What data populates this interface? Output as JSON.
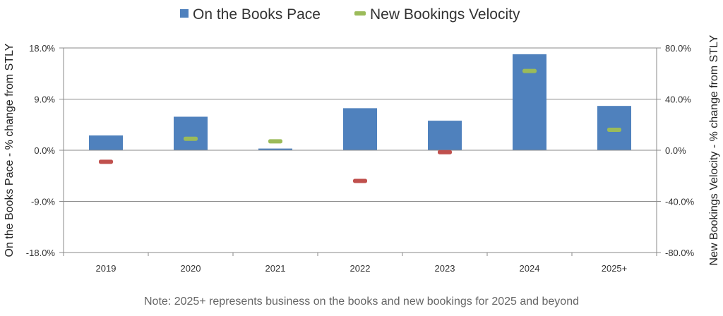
{
  "chart_data": {
    "type": "bar",
    "categories": [
      "2019",
      "2020",
      "2021",
      "2022",
      "2023",
      "2024",
      "2025+"
    ],
    "series": [
      {
        "name": "On the Books Pace",
        "kind": "bar",
        "axis": "left",
        "color": "#4F81BD",
        "values": [
          2.6,
          5.9,
          0.3,
          7.4,
          5.2,
          16.9,
          7.8
        ]
      },
      {
        "name": "New Bookings Velocity",
        "kind": "marker",
        "axis": "right",
        "positive_color": "#9BBB59",
        "negative_color": "#C0504D",
        "values": [
          -9.0,
          9.0,
          7.0,
          -24.0,
          -1.5,
          62.0,
          16.0
        ]
      }
    ],
    "y_left": {
      "label": "On the Books Pace - % change from STLY",
      "ylim": [
        -18,
        18
      ],
      "ticks": [
        "18.0%",
        "9.0%",
        "0.0%",
        "-9.0%",
        "-18.0%"
      ]
    },
    "y_right": {
      "label": "New Bookings Velocity - % change from STLY",
      "ylim": [
        -80,
        80
      ],
      "ticks": [
        "80.0%",
        "40.0%",
        "0.0%",
        "-40.0%",
        "-80.0%"
      ]
    },
    "grid": true,
    "legend": "top-center"
  },
  "note": "Note: 2025+ represents business on the books and new bookings for 2025 and beyond"
}
